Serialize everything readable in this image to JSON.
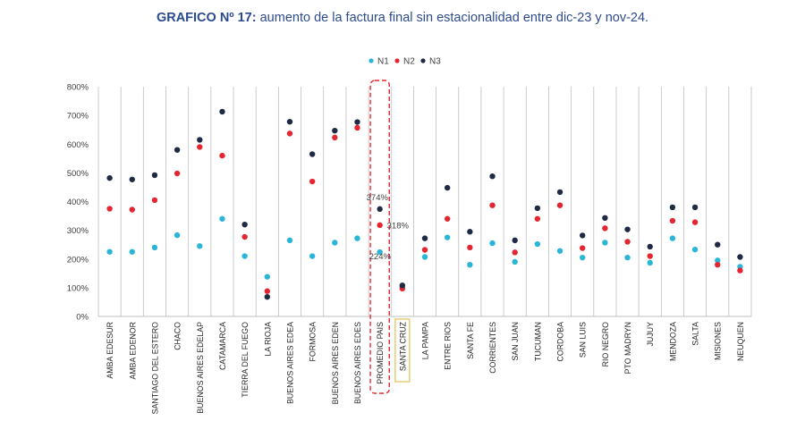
{
  "title": {
    "prefix": "GRAFICO Nº 17:",
    "text": " aumento de la factura final sin estacionalidad entre dic-23 y nov-24."
  },
  "colors": {
    "N1": "#2bb5d8",
    "N2": "#e3262f",
    "N3": "#1f2a44",
    "highlight_dashed": "#e3262f",
    "highlight_box": "#e8c96a",
    "axis": "#bfbfbf",
    "title": "#2e4c8c"
  },
  "chart_data": {
    "type": "scatter",
    "legend_position": "top-center",
    "grid": "vertical separators only",
    "ylim": [
      0,
      800
    ],
    "yticks": [
      "0%",
      "100%",
      "200%",
      "300%",
      "400%",
      "500%",
      "600%",
      "700%",
      "800%"
    ],
    "categories": [
      "AMBA EDESUR",
      "AMBA EDENOR",
      "SANTIAGO DEL ESTERO",
      "CHACO",
      "BUENOS AIRES EDELAP",
      "CATAMARCA",
      "TIERRA DEL FUEGO",
      "LA RIOJA",
      "BUENOS AIRES EDEA",
      "FORMOSA",
      "BUENOS AIRES EDEN",
      "BUENOS AIRES EDES",
      "PROMEDIO PAIS",
      "SANTA CRUZ",
      "LA PAMPA",
      "ENTRE RIOS",
      "SANTA FE",
      "CORRIENTES",
      "SAN JUAN",
      "TUCUMAN",
      "CORDOBA",
      "SAN LUIS",
      "RIO NEGRO",
      "PTO MADRYN",
      "JUJUY",
      "MENDOZA",
      "SALTA",
      "MISIONES",
      "NEUQUEN"
    ],
    "series": [
      {
        "name": "N1",
        "values": [
          225,
          225,
          240,
          283,
          245,
          340,
          210,
          138,
          265,
          210,
          257,
          272,
          224,
          103,
          207,
          275,
          180,
          255,
          190,
          252,
          228,
          205,
          257,
          205,
          187,
          272,
          233,
          195,
          173
        ]
      },
      {
        "name": "N2",
        "values": [
          375,
          372,
          405,
          498,
          590,
          560,
          277,
          88,
          637,
          470,
          623,
          657,
          318,
          97,
          232,
          340,
          240,
          387,
          223,
          340,
          387,
          238,
          307,
          260,
          210,
          333,
          328,
          180,
          160
        ]
      },
      {
        "name": "N3",
        "values": [
          482,
          477,
          492,
          580,
          615,
          713,
          320,
          68,
          678,
          565,
          647,
          677,
          374,
          108,
          272,
          448,
          295,
          488,
          265,
          377,
          433,
          282,
          343,
          303,
          243,
          380,
          380,
          250,
          207
        ]
      }
    ],
    "annotations": [
      {
        "category": "PROMEDIO PAIS",
        "series": "N3",
        "label": "374%"
      },
      {
        "category": "PROMEDIO PAIS",
        "series": "N2",
        "label": "318%"
      },
      {
        "category": "PROMEDIO PAIS",
        "series": "N1",
        "label": "224%"
      }
    ],
    "highlights": [
      {
        "category": "PROMEDIO PAIS",
        "style": "dashed-red-box"
      },
      {
        "category": "SANTA CRUZ",
        "style": "yellow-box"
      }
    ]
  }
}
